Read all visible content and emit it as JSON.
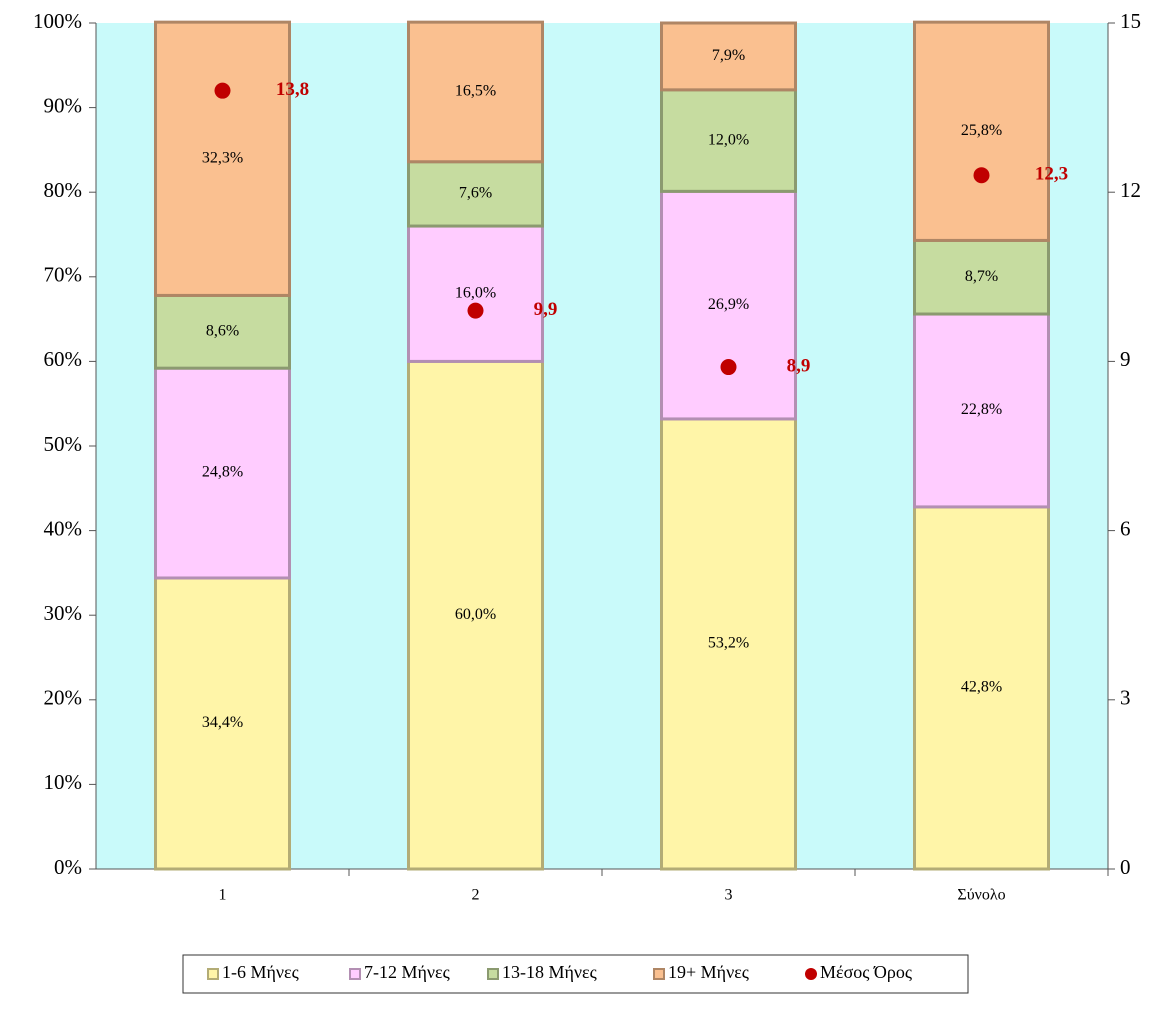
{
  "chart_data": {
    "type": "bar",
    "stacked": true,
    "categories": [
      "1",
      "2",
      "3",
      "Σύνολο"
    ],
    "series": [
      {
        "name": "1-6 Μήνες",
        "color": "#fff5a8",
        "values": [
          34.4,
          60.0,
          53.2,
          42.8
        ],
        "value_labels": [
          "34,4%",
          "60,0%",
          "53,2%",
          "42,8%"
        ]
      },
      {
        "name": "7-12 Μήνες",
        "color": "#ffccff",
        "values": [
          24.8,
          16.0,
          26.9,
          22.8
        ],
        "value_labels": [
          "24,8%",
          "16,0%",
          "26,9%",
          "22,8%"
        ]
      },
      {
        "name": "13-18 Μήνες",
        "color": "#c6dca0",
        "values": [
          8.6,
          7.6,
          12.0,
          8.7
        ],
        "value_labels": [
          "8,6%",
          "7,6%",
          "12,0%",
          "8,7%"
        ]
      },
      {
        "name": "19+ Μήνες",
        "color": "#fac090",
        "values": [
          32.3,
          16.5,
          7.9,
          25.8
        ],
        "value_labels": [
          "32,3%",
          "16,5%",
          "7,9%",
          "25,8%"
        ]
      },
      {
        "name": "Μέσος Όρος",
        "color": "#c00000",
        "type": "scatter",
        "axis": "y2",
        "values": [
          13.8,
          9.9,
          8.9,
          12.3
        ],
        "value_labels": [
          "13,8",
          "9,9",
          "8,9",
          "12,3"
        ]
      }
    ],
    "ylim": [
      0,
      100
    ],
    "yticks": [
      {
        "value": 0,
        "label": "0%"
      },
      {
        "value": 10,
        "label": "10%"
      },
      {
        "value": 20,
        "label": "20%"
      },
      {
        "value": 30,
        "label": "30%"
      },
      {
        "value": 40,
        "label": "40%"
      },
      {
        "value": 50,
        "label": "50%"
      },
      {
        "value": 60,
        "label": "60%"
      },
      {
        "value": 70,
        "label": "70%"
      },
      {
        "value": 80,
        "label": "80%"
      },
      {
        "value": 90,
        "label": "90%"
      },
      {
        "value": 100,
        "label": "100%"
      }
    ],
    "y2lim": [
      0,
      15
    ],
    "y2ticks": [
      0,
      3,
      6,
      9,
      12,
      15
    ],
    "plot_background": "#c9fafa",
    "grid": false,
    "legend": "bottom"
  }
}
